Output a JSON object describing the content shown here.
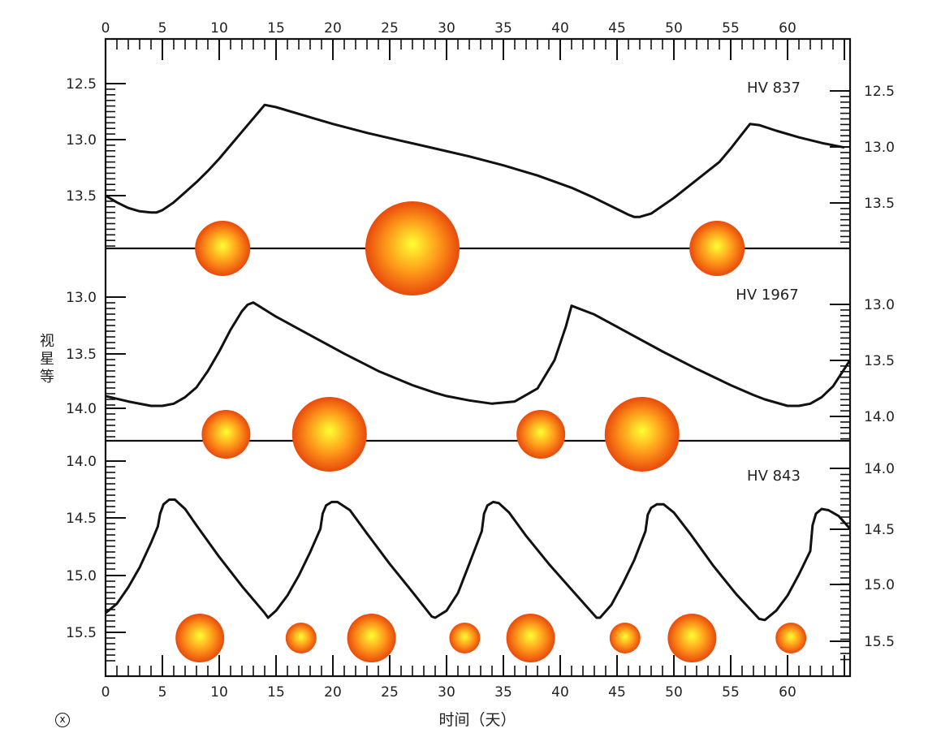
{
  "chart_data": {
    "type": "line",
    "xlabel": "时间（天）",
    "ylabel": "视星等",
    "x_ticks": [
      0,
      5,
      10,
      15,
      20,
      25,
      30,
      35,
      40,
      45,
      50,
      55,
      60
    ],
    "xlim": [
      0,
      65.5
    ],
    "y_inverted": true,
    "grid": false,
    "colors": {
      "curve": "#111111",
      "star_core": "#ffff33",
      "star_mid": "#ff9a1a",
      "star_edge": "#e84a0c"
    },
    "panels": [
      {
        "name": "HV 837",
        "ylim": [
          12.3,
          13.9
        ],
        "yticks_left": [
          "12.5",
          "13.0",
          "13.5"
        ],
        "yticks_right": [
          "12.5",
          "13.0",
          "13.5"
        ],
        "x": [
          0,
          1,
          2,
          3,
          4,
          4.5,
          5,
          6,
          7,
          8,
          9,
          10,
          11,
          12,
          13,
          13.5,
          14,
          15,
          17,
          20,
          23,
          26,
          29,
          32,
          35,
          38,
          41,
          43,
          45,
          46,
          46.5,
          47,
          48,
          50,
          52,
          54,
          55,
          56,
          56.7,
          57.5,
          59,
          61,
          63,
          65
        ],
        "y": [
          13.5,
          13.56,
          13.61,
          13.64,
          13.65,
          13.65,
          13.63,
          13.56,
          13.47,
          13.38,
          13.28,
          13.17,
          13.05,
          12.93,
          12.81,
          12.75,
          12.69,
          12.71,
          12.77,
          12.86,
          12.94,
          13.01,
          13.08,
          13.15,
          13.23,
          13.32,
          13.43,
          13.52,
          13.62,
          13.67,
          13.69,
          13.69,
          13.66,
          13.52,
          13.36,
          13.2,
          13.08,
          12.95,
          12.86,
          12.87,
          12.92,
          12.98,
          13.03,
          13.07
        ],
        "stars": [
          {
            "x": 10.3,
            "size": "medium"
          },
          {
            "x": 27.0,
            "size": "large"
          },
          {
            "x": 53.8,
            "size": "medium"
          }
        ]
      },
      {
        "name": "HV 1967",
        "ylim": [
          12.86,
          14.26
        ],
        "yticks_left": [
          "13.0",
          "13.5",
          "14.0"
        ],
        "yticks_right": [
          "13.0",
          "13.5",
          "14.0"
        ],
        "x": [
          0,
          2,
          4,
          5,
          6,
          7,
          8,
          9,
          10,
          11,
          12,
          12.5,
          13,
          15,
          18,
          21,
          24,
          27,
          29,
          30,
          32,
          34,
          36,
          38,
          39.5,
          40.5,
          41,
          43,
          46,
          49,
          52,
          55,
          57,
          58,
          59,
          60,
          61,
          62,
          63,
          64,
          65.5
        ],
        "y": [
          13.91,
          13.96,
          14.0,
          14.0,
          13.98,
          13.92,
          13.83,
          13.68,
          13.5,
          13.3,
          13.13,
          13.07,
          13.05,
          13.18,
          13.35,
          13.52,
          13.68,
          13.81,
          13.88,
          13.91,
          13.95,
          13.98,
          13.96,
          13.84,
          13.58,
          13.27,
          13.08,
          13.16,
          13.33,
          13.5,
          13.66,
          13.81,
          13.9,
          13.94,
          13.97,
          14.0,
          14.0,
          13.98,
          13.92,
          13.82,
          13.58
        ],
        "stars": [
          {
            "x": 10.6,
            "size": "small"
          },
          {
            "x": 19.7,
            "size": "large"
          },
          {
            "x": 38.3,
            "size": "small"
          },
          {
            "x": 47.2,
            "size": "large"
          }
        ]
      },
      {
        "name": "HV 843",
        "ylim": [
          13.95,
          15.82
        ],
        "yticks_left": [
          "14.0",
          "14.5",
          "15.0",
          "15.5"
        ],
        "yticks_right": [
          "14.0",
          "14.5",
          "15.0",
          "15.5"
        ],
        "x": [
          0,
          1,
          2,
          3,
          4,
          4.6,
          4.8,
          5.1,
          5.6,
          6.1,
          7,
          8,
          10,
          12,
          14,
          14.3,
          15,
          16,
          17,
          18,
          18.9,
          19.1,
          19.4,
          19.9,
          20.4,
          21.5,
          23,
          25,
          27,
          28.7,
          29,
          30,
          31,
          32,
          33.1,
          33.3,
          33.6,
          34.1,
          34.6,
          35.5,
          37,
          39,
          41,
          43.2,
          43.5,
          44.5,
          45.5,
          46.5,
          47.5,
          47.7,
          48,
          48.5,
          49.1,
          50,
          51.5,
          53.5,
          55.5,
          57.5,
          58,
          59,
          60,
          61,
          62,
          62.2,
          62.5,
          63,
          63.6,
          64.5,
          65.5
        ],
        "y": [
          15.3,
          15.22,
          15.08,
          14.91,
          14.7,
          14.56,
          14.45,
          14.37,
          14.33,
          14.33,
          14.41,
          14.55,
          14.82,
          15.07,
          15.3,
          15.34,
          15.28,
          15.15,
          14.98,
          14.78,
          14.58,
          14.45,
          14.38,
          14.35,
          14.35,
          14.42,
          14.62,
          14.88,
          15.12,
          15.33,
          15.34,
          15.28,
          15.13,
          14.88,
          14.6,
          14.45,
          14.38,
          14.35,
          14.36,
          14.44,
          14.64,
          14.88,
          15.1,
          15.34,
          15.34,
          15.23,
          15.05,
          14.85,
          14.6,
          14.46,
          14.4,
          14.37,
          14.37,
          14.44,
          14.63,
          14.9,
          15.14,
          15.35,
          15.36,
          15.28,
          15.15,
          14.97,
          14.77,
          14.55,
          14.45,
          14.41,
          14.42,
          14.47,
          14.58
        ],
        "stars": [
          {
            "x": 8.3,
            "size": "medium"
          },
          {
            "x": 17.2,
            "size": "small"
          },
          {
            "x": 23.4,
            "size": "medium"
          },
          {
            "x": 31.6,
            "size": "small"
          },
          {
            "x": 37.4,
            "size": "medium"
          },
          {
            "x": 45.7,
            "size": "small"
          },
          {
            "x": 51.6,
            "size": "medium"
          },
          {
            "x": 60.3,
            "size": "small"
          }
        ]
      }
    ]
  }
}
